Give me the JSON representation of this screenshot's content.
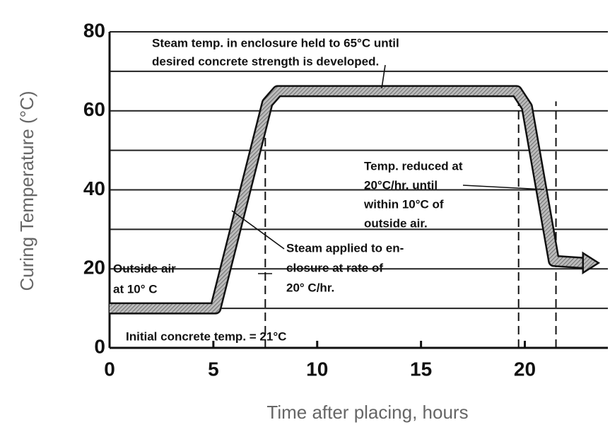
{
  "chart_data": {
    "type": "line",
    "x_label": "Time after placing, hours",
    "y_label": "Curing Temperature (°C)",
    "xlim": [
      0,
      24
    ],
    "ylim": [
      0,
      80
    ],
    "xticks": [
      0,
      5,
      10,
      15,
      20
    ],
    "yticks": [
      0,
      20,
      40,
      60,
      80
    ],
    "minor_yticks": [
      10,
      30,
      50,
      70
    ],
    "grid": true,
    "series": [
      {
        "color": "#999999",
        "x": [
          0,
          5.1,
          7.6,
          8.1,
          19.6,
          20.1,
          21.4,
          22.8
        ],
        "values": [
          10,
          10,
          62,
          65,
          65,
          61,
          22,
          21.5
        ]
      }
    ],
    "reference_lines": [
      7.5,
      19.7,
      21.5
    ],
    "annotations": [
      {
        "lines": [
          "Steam temp. in enclosure held to 65°C until",
          "desired concrete strength is developed."
        ]
      },
      {
        "lines": [
          "Temp. reduced at",
          "20°C/hr. until",
          "within 10°C of",
          "outside air."
        ]
      },
      {
        "lines": [
          "Steam applied to en-",
          "closure at rate of",
          "20° C/hr."
        ]
      },
      {
        "lines": [
          "Outside air",
          "at 10° C"
        ]
      },
      {
        "lines": [
          "Initial concrete temp. = 21°C"
        ]
      }
    ]
  }
}
